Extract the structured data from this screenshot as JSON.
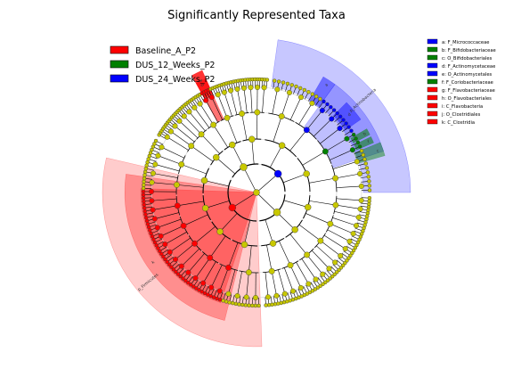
{
  "chart_data": {
    "type": "cladogram",
    "title": "Significantly Represented Taxa",
    "groups": [
      {
        "name": "Baseline_A_P2",
        "color": "#ff0000"
      },
      {
        "name": "DUS_12_Weeks_P2",
        "color": "#008000"
      },
      {
        "name": "DUS_24_Weeks_P2",
        "color": "#0000ff"
      }
    ],
    "taxa_key": [
      {
        "label": "a: F_Micrococcaceae",
        "color": "#0000ff"
      },
      {
        "label": "b: F_Bifidobacteriaceae",
        "color": "#008000"
      },
      {
        "label": "c: O_Bifidobacteriales",
        "color": "#008000"
      },
      {
        "label": "d: F_Actinomycetaceae",
        "color": "#0000ff"
      },
      {
        "label": "e: O_Actinomycetales",
        "color": "#0000ff"
      },
      {
        "label": "f: F_Coriobacteriaceae",
        "color": "#008000"
      },
      {
        "label": "g: F_Flavobacteriaceae",
        "color": "#ff0000"
      },
      {
        "label": "h: O_Flavobacteriales",
        "color": "#ff0000"
      },
      {
        "label": "i: C_Flavobacteria",
        "color": "#ff0000"
      },
      {
        "label": "j: O_Clostridiales",
        "color": "#ff0000"
      },
      {
        "label": "k: C_Clostridia",
        "color": "#ff0000"
      }
    ],
    "sectors": [
      {
        "label": "p_Actinobacteria",
        "group": "DUS_24_Weeks_P2",
        "ring": "phylum"
      },
      {
        "label": "p_Firmicutes",
        "group": "Baseline_A_P2",
        "ring": "phylum"
      },
      {
        "label": "k",
        "group": "Baseline_A_P2",
        "ring": "class"
      },
      {
        "label": "j",
        "group": "Baseline_A_P2",
        "ring": "order"
      },
      {
        "label": "i",
        "group": "Baseline_A_P2",
        "ring": "class"
      },
      {
        "label": "h",
        "group": "Baseline_A_P2",
        "ring": "order"
      },
      {
        "label": "g",
        "group": "Baseline_A_P2",
        "ring": "family"
      },
      {
        "label": "e",
        "group": "DUS_24_Weeks_P2",
        "ring": "order"
      },
      {
        "label": "c",
        "group": "DUS_12_Weeks_P2",
        "ring": "order"
      },
      {
        "label": "a",
        "group": "DUS_24_Weeks_P2",
        "ring": "family"
      },
      {
        "label": "b",
        "group": "DUS_12_Weeks_P2",
        "ring": "family"
      },
      {
        "label": "d",
        "group": "DUS_24_Weeks_P2",
        "ring": "family"
      },
      {
        "label": "f",
        "group": "DUS_12_Weeks_P2",
        "ring": "family"
      }
    ],
    "node_colors": {
      "neutral": "#c8c800",
      "Baseline_A_P2": "#ff0000",
      "DUS_12_Weeks_P2": "#008000",
      "DUS_24_Weeks_P2": "#0000ff"
    }
  }
}
